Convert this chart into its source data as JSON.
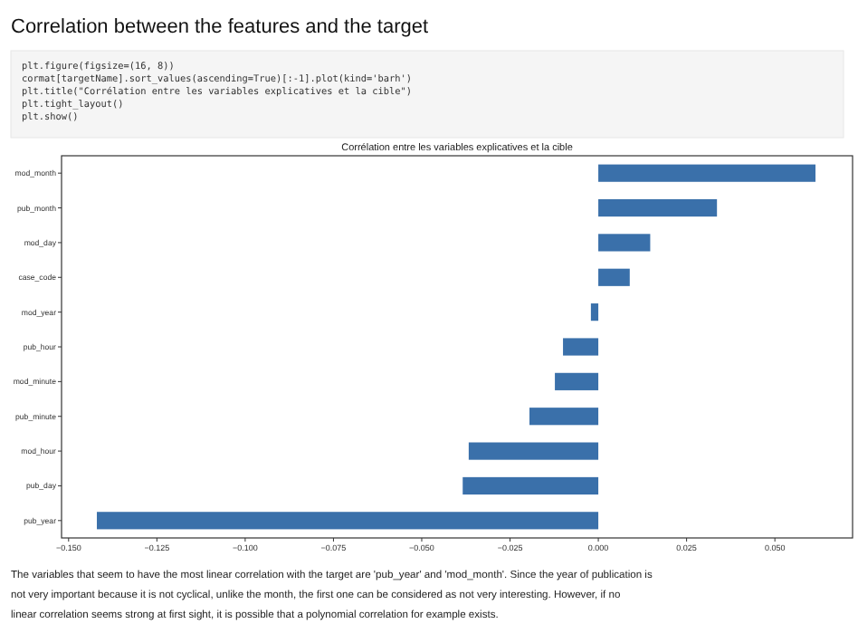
{
  "chart_data": {
    "type": "bar",
    "orientation": "horizontal",
    "title": "Correlation between the features and the target",
    "subtitle": "Corrélation entre les variables explicatives et la cible",
    "categories": [
      "mod_month",
      "pub_month",
      "mod_day",
      "case_code",
      "mod_year",
      "pub_hour",
      "mod_minute",
      "pub_minute",
      "mod_hour",
      "pub_day",
      "pub_year"
    ],
    "values": [
      0.0615,
      0.0336,
      0.0147,
      0.0089,
      -0.0021,
      -0.01,
      -0.0123,
      -0.0195,
      -0.0367,
      -0.0384,
      -0.142
    ],
    "color": "#3a70aa",
    "xlim": [
      -0.152,
      0.072
    ],
    "xticks": [
      {
        "value": -0.15,
        "label": "−0.150"
      },
      {
        "value": -0.125,
        "label": "−0.125"
      },
      {
        "value": -0.1,
        "label": "−0.100"
      },
      {
        "value": -0.075,
        "label": "−0.075"
      },
      {
        "value": -0.05,
        "label": "−0.050"
      },
      {
        "value": -0.025,
        "label": "−0.025"
      },
      {
        "value": 0,
        "label": "0.000"
      },
      {
        "value": 0.025,
        "label": "0.025"
      },
      {
        "value": 0.05,
        "label": "0.050"
      }
    ],
    "grid": false,
    "annotations": [
      "plt.figure(figsize=(16, 8))",
      "cormat[targetName].sort_values(ascending=True)[:-1].plot(kind='barh')",
      "plt.title(\"Corrélation entre les variables explicatives et la cible\")",
      "plt.tight_layout()",
      "plt.show()",
      "The variables that seem to have the most linear correlation with the target are 'pub_year' and 'mod_month'. Since the year of publication is not very important because it is not cyclical, unlike the month, the first one can be considered as not very interesting. However, if no linear correlation seems strong at first sight, it is possible that a polynomial correlation for example exists."
    ]
  }
}
